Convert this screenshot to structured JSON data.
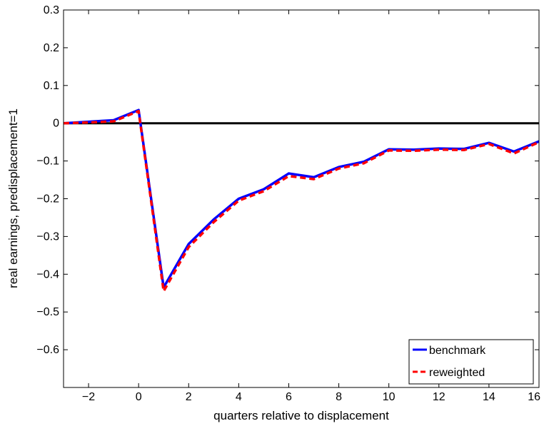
{
  "chart_data": {
    "type": "line",
    "title": "",
    "xlabel": "quarters relative to displacement",
    "ylabel": "real earnings, predisplacement=1",
    "xlim": [
      -3,
      16
    ],
    "ylim": [
      -0.7,
      0.3
    ],
    "xticks": [
      -2,
      0,
      2,
      4,
      6,
      8,
      10,
      12,
      14,
      16
    ],
    "yticks": [
      0.3,
      0.2,
      0.1,
      0,
      -0.1,
      -0.2,
      -0.3,
      -0.4,
      -0.5,
      -0.6
    ],
    "xtick_labels": [
      "−2",
      "0",
      "2",
      "4",
      "6",
      "8",
      "10",
      "12",
      "14",
      "16"
    ],
    "ytick_labels": [
      "0.3",
      "0.2",
      "0.1",
      "0",
      "−0.1",
      "−0.2",
      "−0.3",
      "−0.4",
      "−0.5",
      "−0.6"
    ],
    "reference_line": {
      "y": 0,
      "color": "#000000"
    },
    "x": [
      -3,
      -2,
      -1,
      0,
      1,
      2,
      3,
      4,
      5,
      6,
      7,
      8,
      9,
      10,
      11,
      12,
      13,
      14,
      15,
      16
    ],
    "series": [
      {
        "name": "benchmark",
        "color": "#0000ff",
        "style": "solid",
        "values": [
          0.0,
          0.004,
          0.008,
          0.035,
          -0.435,
          -0.32,
          -0.255,
          -0.2,
          -0.175,
          -0.133,
          -0.143,
          -0.116,
          -0.102,
          -0.069,
          -0.07,
          -0.067,
          -0.068,
          -0.052,
          -0.075,
          -0.048
        ]
      },
      {
        "name": "reweighted",
        "color": "#ff0000",
        "style": "dashed",
        "values": [
          0.0,
          0.002,
          0.005,
          0.032,
          -0.445,
          -0.328,
          -0.262,
          -0.205,
          -0.18,
          -0.14,
          -0.148,
          -0.12,
          -0.106,
          -0.072,
          -0.073,
          -0.07,
          -0.071,
          -0.055,
          -0.08,
          -0.05
        ]
      }
    ],
    "legend": {
      "position": "bottom-right"
    },
    "grid": false
  }
}
